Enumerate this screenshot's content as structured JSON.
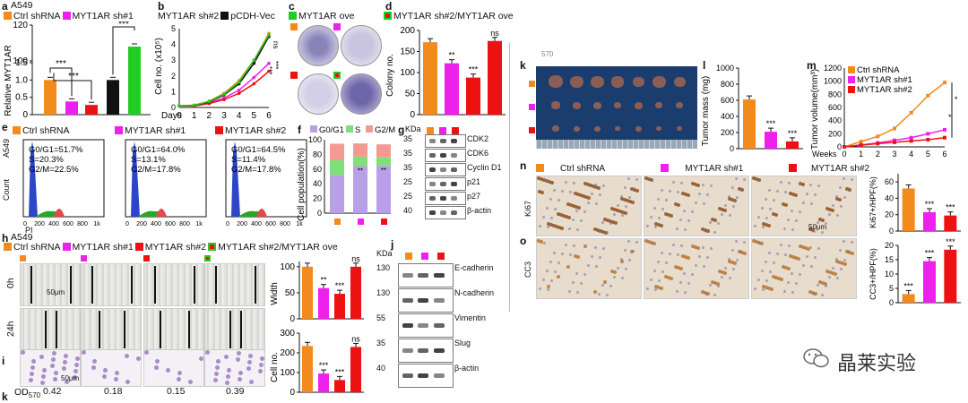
{
  "colors": {
    "ctrl": "#f28a1d",
    "sh1": "#ee20ee",
    "sh2": "#ee1111",
    "vec": "#111111",
    "ove": "#22cc22",
    "g0g1": "#b9a0e6",
    "s": "#7fe07a",
    "g2m": "#f39b93"
  },
  "panels": {
    "a": {
      "letter": "a",
      "cell": "A549",
      "ylabel": "Relative MYT1AR",
      "ticks": [
        "0",
        "0.5",
        "1.0",
        "1.5",
        "100",
        "120"
      ],
      "stars": [
        "***",
        "***",
        "***"
      ]
    },
    "b": {
      "letter": "b",
      "ylabel": "Cell no. (x10⁵)",
      "xlabel": "Days",
      "xticks": [
        "0",
        "1",
        "2",
        "3",
        "4",
        "5",
        "6"
      ],
      "yticks": [
        "0",
        "1",
        "2",
        "3",
        "4",
        "5"
      ],
      "stars": [
        "ns",
        "***",
        "***"
      ]
    },
    "c": {
      "letter": "c"
    },
    "d": {
      "letter": "d",
      "ylabel": "Colony no.",
      "yticks": [
        "0",
        "50",
        "100",
        "150",
        "200"
      ],
      "stars": [
        "**",
        "***",
        "ns"
      ]
    },
    "e": {
      "letter": "e",
      "cell": "A549",
      "xlabel": "PI",
      "ylabel": "Count",
      "xticks": [
        "0",
        "200",
        "400",
        "600",
        "800",
        "1k"
      ],
      "plots": [
        {
          "label": "Ctrl shRNA",
          "g0g1": "G0/G1=51.7%",
          "s": "S=20.3%",
          "g2m": "G2/M=22.5%"
        },
        {
          "label": "MYT1AR sh#1",
          "g0g1": "G0/G1=64.0%",
          "s": "S=13.1%",
          "g2m": "G2/M=17.8%"
        },
        {
          "label": "MYT1AR sh#2",
          "g0g1": "G0/G1=64.5%",
          "s": "S=11.4%",
          "g2m": "G2/M=17.8%"
        }
      ]
    },
    "f": {
      "letter": "f",
      "ylabel": "Cell population(%)",
      "yticks": [
        "0",
        "20",
        "40",
        "60",
        "80",
        "100"
      ],
      "legend": [
        "G0/G1",
        "S",
        "G2/M"
      ],
      "stars": [
        "**",
        "**"
      ]
    },
    "g": {
      "letter": "g",
      "kda_label": "KDa",
      "proteins": [
        "CDK2",
        "CDK6",
        "Cyclin D1",
        "p21",
        "p27",
        "β-actin"
      ],
      "kda": [
        "35",
        "35",
        "35",
        "25",
        "25",
        "40"
      ]
    },
    "h": {
      "letter": "h",
      "cell": "A549",
      "rows": [
        "0h",
        "24h"
      ],
      "scale": "50μm"
    },
    "i": {
      "letter": "i",
      "scale": "50μm"
    },
    "j": {
      "letter": "j",
      "kda_label": "KDa",
      "proteins": [
        "E-cadherin",
        "N-cadherin",
        "Vimentin",
        "Slug",
        "β-actin"
      ],
      "kda": [
        "130",
        "130",
        "55",
        "35",
        "40"
      ]
    },
    "width": {
      "ylabel": "Width",
      "yticks": [
        "0",
        "50",
        "100"
      ],
      "stars": [
        "**",
        "***",
        "ns"
      ]
    },
    "cellno": {
      "ylabel": "Cell no.",
      "yticks": [
        "0",
        "100",
        "200",
        "300"
      ],
      "stars": [
        "***",
        "***",
        "ns"
      ]
    },
    "od": {
      "label": "OD",
      "sub": "570",
      "values": [
        "0.42",
        "0.18",
        "0.15",
        "0.39"
      ]
    },
    "k": {
      "letter": "k",
      "sub": "570"
    },
    "l": {
      "letter": "l",
      "ylabel": "Tumor mass (mg)",
      "yticks": [
        "0",
        "200",
        "400",
        "600",
        "800",
        "1000"
      ],
      "stars": [
        "***",
        "***"
      ]
    },
    "m": {
      "letter": "m",
      "ylabel": "Tumor volume(mm³)",
      "xlabel": "Weeks",
      "xticks": [
        "0",
        "1",
        "2",
        "3",
        "4",
        "5",
        "6"
      ],
      "yticks": [
        "0",
        "200",
        "400",
        "600",
        "800",
        "1000",
        "1200"
      ],
      "stars": [
        "*",
        "*"
      ]
    },
    "n": {
      "letter": "n",
      "row": "Ki67",
      "scale": "50μm",
      "ylabel": "Ki67+/HPF(%)",
      "yticks": [
        "0",
        "20",
        "40",
        "60"
      ],
      "stars": [
        "***",
        "***"
      ]
    },
    "o": {
      "letter": "o",
      "row": "CC3",
      "ylabel": "CC3+/HPF(%)",
      "yticks": [
        "0",
        "5",
        "10",
        "15",
        "20"
      ],
      "stars": [
        "***",
        "***",
        "***"
      ]
    }
  },
  "legends": {
    "top": [
      "Ctrl shRNA",
      "MYT1AR sh#1",
      "MYT1AR sh#2",
      "pCDH-Vec",
      "MYT1AR ove",
      "MYT1AR sh#2/MYT1AR ove"
    ],
    "h_row": [
      "Ctrl shRNA",
      "MYT1AR sh#1",
      "MYT1AR sh#2",
      "MYT1AR sh#2/MYT1AR ove"
    ],
    "ihc": [
      "Ctrl shRNA",
      "MYT1AR sh#1",
      "MYT1AR sh#2"
    ],
    "m": [
      "Ctrl shRNA",
      "MYT1AR sh#1",
      "MYT1AR sh#2"
    ]
  },
  "watermark": "晶莱实验",
  "chart_data": [
    {
      "type": "bar",
      "panel": "a",
      "categories": [
        "Ctrl shRNA",
        "MYT1AR sh#1",
        "MYT1AR sh#2",
        "pCDH-Vec",
        "MYT1AR ove"
      ],
      "values": [
        1.0,
        0.38,
        0.28,
        1.0,
        108
      ],
      "ylim": [
        0,
        120
      ]
    },
    {
      "type": "line",
      "panel": "b",
      "x": [
        0,
        1,
        2,
        3,
        4,
        5,
        6
      ],
      "series": [
        {
          "name": "Ctrl shRNA",
          "values": [
            0.1,
            0.15,
            0.4,
            0.9,
            1.7,
            3.0,
            4.7
          ]
        },
        {
          "name": "MYT1AR sh#1",
          "values": [
            0.1,
            0.12,
            0.3,
            0.6,
            1.1,
            1.9,
            2.8
          ]
        },
        {
          "name": "MYT1AR sh#2",
          "values": [
            0.1,
            0.1,
            0.25,
            0.5,
            0.9,
            1.5,
            2.3
          ]
        },
        {
          "name": "pCDH-Vec",
          "values": [
            0.1,
            0.13,
            0.35,
            0.8,
            1.5,
            2.8,
            4.5
          ]
        },
        {
          "name": "MYT1AR ove",
          "values": [
            0.1,
            0.14,
            0.38,
            0.85,
            1.6,
            3.0,
            4.6
          ]
        }
      ],
      "ylim": [
        0,
        5
      ]
    },
    {
      "type": "bar",
      "panel": "d",
      "categories": [
        "Ctrl shRNA",
        "MYT1AR sh#1",
        "MYT1AR sh#2",
        "MYT1AR sh#2/MYT1AR ove"
      ],
      "values": [
        172,
        122,
        88,
        175
      ],
      "ylim": [
        0,
        200
      ]
    },
    {
      "type": "bar",
      "panel": "f",
      "categories": [
        "Ctrl shRNA",
        "MYT1AR sh#1",
        "MYT1AR sh#2"
      ],
      "series": [
        {
          "name": "G0/G1",
          "values": [
            51.7,
            64.0,
            64.5
          ]
        },
        {
          "name": "S",
          "values": [
            20.3,
            13.1,
            11.4
          ]
        },
        {
          "name": "G2/M",
          "values": [
            22.5,
            17.8,
            17.8
          ]
        }
      ],
      "ylim": [
        0,
        100
      ]
    },
    {
      "type": "bar",
      "panel": "width",
      "categories": [
        "Ctrl shRNA",
        "MYT1AR sh#1",
        "MYT1AR sh#2",
        "MYT1AR sh#2/MYT1AR ove"
      ],
      "values": [
        100,
        59,
        48,
        100
      ],
      "ylim": [
        0,
        110
      ]
    },
    {
      "type": "bar",
      "panel": "cellno",
      "categories": [
        "Ctrl shRNA",
        "MYT1AR sh#1",
        "MYT1AR sh#2",
        "MYT1AR sh#2/MYT1AR ove"
      ],
      "values": [
        235,
        95,
        62,
        230
      ],
      "ylim": [
        0,
        300
      ]
    },
    {
      "type": "bar",
      "panel": "l",
      "categories": [
        "Ctrl shRNA",
        "MYT1AR sh#1",
        "MYT1AR sh#2"
      ],
      "values": [
        610,
        210,
        90
      ],
      "ylim": [
        0,
        1000
      ]
    },
    {
      "type": "line",
      "panel": "m",
      "x": [
        0,
        1,
        2,
        3,
        4,
        5,
        6
      ],
      "series": [
        {
          "name": "Ctrl shRNA",
          "values": [
            0,
            80,
            160,
            280,
            520,
            780,
            980
          ]
        },
        {
          "name": "MYT1AR sh#1",
          "values": [
            0,
            30,
            60,
            100,
            140,
            200,
            260
          ]
        },
        {
          "name": "MYT1AR sh#2",
          "values": [
            0,
            25,
            50,
            70,
            90,
            110,
            140
          ]
        }
      ],
      "ylim": [
        0,
        1200
      ]
    },
    {
      "type": "bar",
      "panel": "n",
      "categories": [
        "Ctrl shRNA",
        "MYT1AR sh#1",
        "MYT1AR sh#2"
      ],
      "values": [
        52,
        23,
        19
      ],
      "ylim": [
        0,
        70
      ]
    },
    {
      "type": "bar",
      "panel": "o",
      "categories": [
        "Ctrl shRNA",
        "MYT1AR sh#1",
        "MYT1AR sh#2"
      ],
      "values": [
        3,
        14.5,
        18.5
      ],
      "ylim": [
        0,
        20
      ]
    }
  ]
}
